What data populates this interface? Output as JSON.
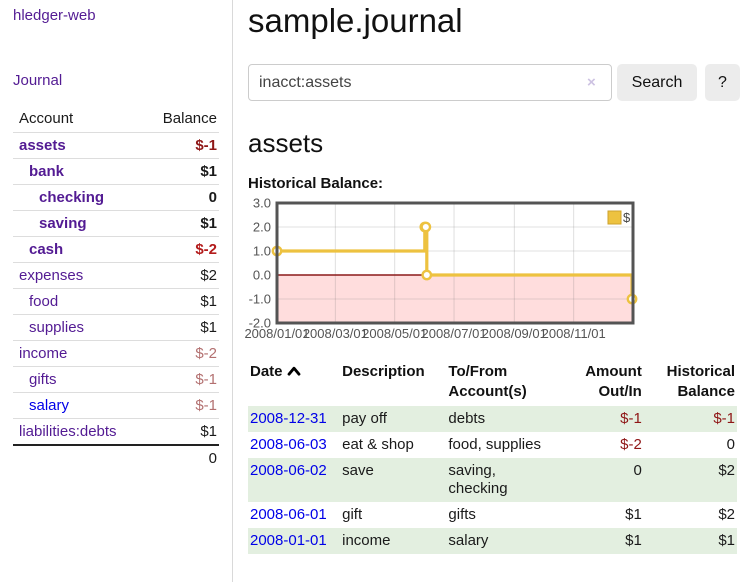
{
  "theme": {
    "link_purple": "#531b93",
    "link_blue": "#0000e8",
    "negative_red": "#8f1616",
    "negative_soft": "#b37070",
    "stripe_green": "#e3efe0",
    "button_gray": "#ececec"
  },
  "sidebar": {
    "brand": "hledger-web",
    "journal_link": "Journal",
    "accounts_table": {
      "headers": {
        "account": "Account",
        "balance": "Balance"
      },
      "rows": [
        {
          "name": "assets",
          "balance": "$-1"
        },
        {
          "name": "bank",
          "balance": "$1"
        },
        {
          "name": "checking",
          "balance": "0"
        },
        {
          "name": "saving",
          "balance": "$1"
        },
        {
          "name": "cash",
          "balance": "$-2"
        },
        {
          "name": "expenses",
          "balance": "$2"
        },
        {
          "name": "food",
          "balance": "$1"
        },
        {
          "name": "supplies",
          "balance": "$1"
        },
        {
          "name": "income",
          "balance": "$-2"
        },
        {
          "name": "gifts",
          "balance": "$-1"
        },
        {
          "name": "salary",
          "balance": "$-1"
        },
        {
          "name": "liabilities:debts",
          "balance": "$1"
        }
      ],
      "total": "0"
    }
  },
  "header": {
    "title": "sample.journal"
  },
  "search": {
    "value": "inacct:assets",
    "clear_icon": "×",
    "button_label": "Search",
    "help_label": "?"
  },
  "account_page": {
    "heading": "assets",
    "chart_label": "Historical Balance:"
  },
  "chart_data": {
    "type": "line",
    "step": true,
    "title": "Historical Balance",
    "series": [
      {
        "name": "$",
        "color": "#EDC240",
        "points": [
          {
            "date": "2008-01-01",
            "value": 1
          },
          {
            "date": "2008-06-01",
            "value": 2
          },
          {
            "date": "2008-06-02",
            "value": 2
          },
          {
            "date": "2008-06-03",
            "value": 0
          },
          {
            "date": "2008-12-31",
            "value": -1
          }
        ]
      }
    ],
    "xlim": [
      "2008-01-01",
      "2009-01-01"
    ],
    "ylim": [
      -2,
      3
    ],
    "x_ticks": [
      "2008/01/01",
      "2008/03/01",
      "2008/05/01",
      "2008/07/01",
      "2008/09/01",
      "2008/11/01"
    ],
    "y_ticks": [
      "3.0",
      "2.0",
      "1.0",
      "0.0",
      "-1.0",
      "-2.0"
    ],
    "grid": true,
    "legend_position": "top-right",
    "legend": [
      "$"
    ],
    "negative_region_color": "#ffdddd",
    "zero_line_color": "#8b1a1a",
    "border_color": "#545454",
    "tick_color": "#545454"
  },
  "register_table": {
    "headers": [
      {
        "label": "Date"
      },
      {
        "label": "Description"
      },
      {
        "label": "To/From Account(s)"
      },
      {
        "label": "Amount Out/In"
      },
      {
        "label": "Historical Balance"
      }
    ],
    "rows": [
      {
        "date": "2008-12-31",
        "description": "pay off",
        "accounts": "debts",
        "amount": "$-1",
        "balance": "$-1"
      },
      {
        "date": "2008-06-03",
        "description": "eat & shop",
        "accounts": "food, supplies",
        "amount": "$-2",
        "balance": "0"
      },
      {
        "date": "2008-06-02",
        "description": "save",
        "accounts": "saving, checking",
        "amount": "0",
        "balance": "$2"
      },
      {
        "date": "2008-06-01",
        "description": "gift",
        "accounts": "gifts",
        "amount": "$1",
        "balance": "$2"
      },
      {
        "date": "2008-01-01",
        "description": "income",
        "accounts": "salary",
        "amount": "$1",
        "balance": "$1"
      }
    ]
  }
}
